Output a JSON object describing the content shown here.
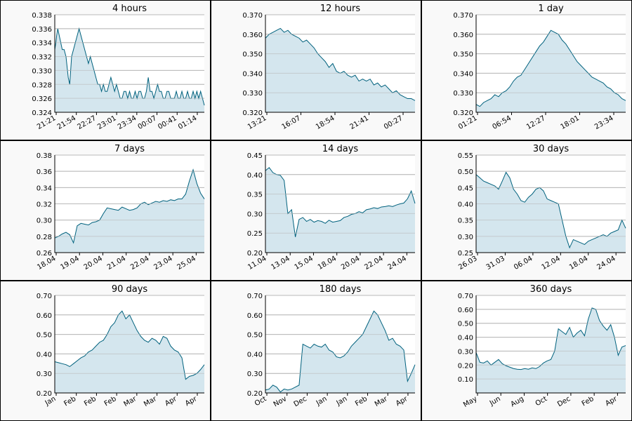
{
  "chart_data": [
    {
      "type": "area",
      "title": "4 hours",
      "xlabel": "",
      "ylabel": "",
      "ylim": [
        0.324,
        0.338
      ],
      "yticks": [
        "0.338",
        "0.336",
        "0.334",
        "0.332",
        "0.330",
        "0.328",
        "0.326",
        "0.324"
      ],
      "xticks": [
        "21:21",
        "21:54",
        "22:27",
        "23:01",
        "23:34",
        "00:07",
        "00:41",
        "01:14"
      ],
      "x": [
        0,
        0.3,
        0.5,
        0.8,
        1.2,
        1.6,
        2,
        2.5,
        3,
        3.2,
        3.6,
        4,
        4.5,
        5,
        5.5,
        6,
        6.5,
        7,
        7.5,
        8,
        8.5,
        9,
        9.5,
        10,
        10.5,
        11,
        11.5,
        12,
        12.5,
        13,
        13.5,
        14,
        14.5,
        15,
        15.5,
        16,
        16.5,
        17,
        17.5,
        18,
        18.5,
        19,
        19.5,
        20,
        20.5,
        21,
        21.5,
        22,
        22.5,
        23,
        23.5,
        24,
        24.5,
        25,
        25.5,
        26,
        26.5,
        27,
        27.5,
        28,
        28.5,
        29,
        29.5,
        30,
        30.5,
        31,
        31.5,
        32,
        32.5,
        33,
        33.5,
        34,
        34.5,
        35,
        35.5,
        36,
        36.5,
        37,
        37.5,
        38,
        38.5,
        39,
        39.5,
        40
      ],
      "values": [
        0.333,
        0.334,
        0.335,
        0.336,
        0.335,
        0.334,
        0.333,
        0.333,
        0.332,
        0.331,
        0.329,
        0.328,
        0.332,
        0.333,
        0.334,
        0.335,
        0.336,
        0.335,
        0.334,
        0.333,
        0.332,
        0.331,
        0.332,
        0.331,
        0.33,
        0.329,
        0.328,
        0.328,
        0.327,
        0.328,
        0.327,
        0.327,
        0.328,
        0.329,
        0.328,
        0.327,
        0.328,
        0.327,
        0.326,
        0.326,
        0.327,
        0.327,
        0.326,
        0.327,
        0.326,
        0.326,
        0.327,
        0.326,
        0.327,
        0.327,
        0.326,
        0.326,
        0.327,
        0.329,
        0.327,
        0.327,
        0.326,
        0.327,
        0.328,
        0.327,
        0.327,
        0.326,
        0.326,
        0.327,
        0.327,
        0.326,
        0.326,
        0.326,
        0.327,
        0.326,
        0.326,
        0.327,
        0.326,
        0.326,
        0.327,
        0.326,
        0.326,
        0.327,
        0.326,
        0.327,
        0.326,
        0.327,
        0.326,
        0.325
      ]
    },
    {
      "type": "area",
      "title": "12 hours",
      "xlabel": "",
      "ylabel": "",
      "ylim": [
        0.32,
        0.37
      ],
      "yticks": [
        "0.370",
        "0.360",
        "0.350",
        "0.340",
        "0.330",
        "0.320"
      ],
      "xticks": [
        "13:21",
        "16:07",
        "18:54",
        "21:41",
        "00:27"
      ],
      "x": [
        0,
        1,
        2,
        3,
        4,
        5,
        6,
        7,
        8,
        9,
        10,
        11,
        12,
        13,
        14,
        15,
        16,
        17,
        18,
        19,
        20,
        21,
        22,
        23,
        24,
        25,
        26,
        27,
        28,
        29,
        30,
        31,
        32,
        33,
        34,
        35,
        36,
        37,
        38,
        39,
        40
      ],
      "values": [
        0.358,
        0.36,
        0.361,
        0.362,
        0.363,
        0.361,
        0.362,
        0.36,
        0.359,
        0.358,
        0.356,
        0.357,
        0.355,
        0.353,
        0.35,
        0.348,
        0.346,
        0.343,
        0.345,
        0.341,
        0.34,
        0.341,
        0.339,
        0.338,
        0.339,
        0.336,
        0.337,
        0.336,
        0.337,
        0.334,
        0.335,
        0.333,
        0.334,
        0.332,
        0.33,
        0.331,
        0.329,
        0.328,
        0.327,
        0.327,
        0.326
      ]
    },
    {
      "type": "area",
      "title": "1 day",
      "xlabel": "",
      "ylabel": "",
      "ylim": [
        0.32,
        0.37
      ],
      "yticks": [
        "0.370",
        "0.360",
        "0.350",
        "0.340",
        "0.330",
        "0.320"
      ],
      "xticks": [
        "01:21",
        "06:54",
        "12:27",
        "18:01",
        "23:34"
      ],
      "x": [
        0,
        1,
        2,
        3,
        4,
        5,
        6,
        7,
        8,
        9,
        10,
        11,
        12,
        13,
        14,
        15,
        16,
        17,
        18,
        19,
        20,
        21,
        22,
        23,
        24,
        25,
        26,
        27,
        28,
        29,
        30,
        31,
        32,
        33,
        34,
        35,
        36,
        37,
        38,
        39,
        40
      ],
      "values": [
        0.324,
        0.323,
        0.325,
        0.326,
        0.327,
        0.329,
        0.328,
        0.33,
        0.331,
        0.333,
        0.336,
        0.338,
        0.339,
        0.342,
        0.345,
        0.348,
        0.351,
        0.354,
        0.356,
        0.359,
        0.362,
        0.361,
        0.36,
        0.357,
        0.355,
        0.352,
        0.349,
        0.346,
        0.344,
        0.342,
        0.34,
        0.338,
        0.337,
        0.336,
        0.335,
        0.333,
        0.332,
        0.33,
        0.329,
        0.327,
        0.326
      ]
    },
    {
      "type": "area",
      "title": "7 days",
      "xlabel": "",
      "ylabel": "",
      "ylim": [
        0.26,
        0.38
      ],
      "yticks": [
        "0.38",
        "0.36",
        "0.34",
        "0.32",
        "0.30",
        "0.28",
        "0.26"
      ],
      "xticks": [
        "18.04",
        "19.04",
        "20.04",
        "21.04",
        "22.04",
        "23.04",
        "25.04"
      ],
      "x": [
        0,
        1,
        2,
        3,
        4,
        5,
        6,
        7,
        8,
        9,
        10,
        11,
        12,
        13,
        14,
        15,
        16,
        17,
        18,
        19,
        20,
        21,
        22,
        23,
        24,
        25,
        26,
        27,
        28,
        29,
        30,
        31,
        32,
        33,
        34,
        35,
        36,
        37,
        38,
        39,
        40
      ],
      "values": [
        0.278,
        0.28,
        0.283,
        0.285,
        0.282,
        0.272,
        0.293,
        0.296,
        0.295,
        0.294,
        0.297,
        0.298,
        0.3,
        0.308,
        0.315,
        0.314,
        0.313,
        0.312,
        0.316,
        0.314,
        0.312,
        0.313,
        0.315,
        0.32,
        0.322,
        0.319,
        0.321,
        0.323,
        0.322,
        0.324,
        0.323,
        0.325,
        0.324,
        0.326,
        0.326,
        0.332,
        0.348,
        0.362,
        0.345,
        0.333,
        0.326
      ]
    },
    {
      "type": "area",
      "title": "14 days",
      "xlabel": "",
      "ylabel": "",
      "ylim": [
        0.2,
        0.45
      ],
      "yticks": [
        "0.45",
        "0.40",
        "0.35",
        "0.30",
        "0.25",
        "0.20"
      ],
      "xticks": [
        "11.04",
        "13.04",
        "15.04",
        "18.04",
        "20.04",
        "22.04",
        "24.04"
      ],
      "x": [
        0,
        1,
        2,
        3,
        4,
        5,
        6,
        7,
        8,
        9,
        10,
        11,
        12,
        13,
        14,
        15,
        16,
        17,
        18,
        19,
        20,
        21,
        22,
        23,
        24,
        25,
        26,
        27,
        28,
        29,
        30,
        31,
        32,
        33,
        34,
        35,
        36,
        37,
        38,
        39,
        40
      ],
      "values": [
        0.41,
        0.418,
        0.405,
        0.4,
        0.398,
        0.385,
        0.3,
        0.31,
        0.24,
        0.285,
        0.29,
        0.28,
        0.285,
        0.278,
        0.282,
        0.28,
        0.275,
        0.283,
        0.278,
        0.28,
        0.282,
        0.29,
        0.293,
        0.298,
        0.3,
        0.305,
        0.302,
        0.31,
        0.312,
        0.315,
        0.313,
        0.317,
        0.318,
        0.32,
        0.318,
        0.322,
        0.325,
        0.327,
        0.338,
        0.358,
        0.326
      ]
    },
    {
      "type": "area",
      "title": "30 days",
      "xlabel": "",
      "ylabel": "",
      "ylim": [
        0.25,
        0.55
      ],
      "yticks": [
        "0.55",
        "0.50",
        "0.45",
        "0.40",
        "0.35",
        "0.30",
        "0.25"
      ],
      "xticks": [
        "26.03",
        "31.03",
        "06.04",
        "12.04",
        "18.04",
        "24.04"
      ],
      "x": [
        0,
        1,
        2,
        3,
        4,
        5,
        6,
        7,
        8,
        9,
        10,
        11,
        12,
        13,
        14,
        15,
        16,
        17,
        18,
        19,
        20,
        21,
        22,
        23,
        24,
        25,
        26,
        27,
        28,
        29,
        30,
        31,
        32,
        33,
        34,
        35,
        36,
        37,
        38,
        39,
        40
      ],
      "values": [
        0.49,
        0.48,
        0.47,
        0.465,
        0.46,
        0.455,
        0.445,
        0.47,
        0.497,
        0.48,
        0.445,
        0.43,
        0.41,
        0.405,
        0.42,
        0.43,
        0.445,
        0.45,
        0.44,
        0.415,
        0.41,
        0.405,
        0.4,
        0.35,
        0.3,
        0.265,
        0.29,
        0.285,
        0.28,
        0.275,
        0.285,
        0.29,
        0.295,
        0.3,
        0.305,
        0.3,
        0.31,
        0.315,
        0.32,
        0.35,
        0.325
      ]
    },
    {
      "type": "area",
      "title": "90 days",
      "xlabel": "",
      "ylabel": "",
      "ylim": [
        0.2,
        0.7
      ],
      "yticks": [
        "0.70",
        "0.60",
        "0.50",
        "0.40",
        "0.30",
        "0.20"
      ],
      "xticks": [
        "Jan",
        "Feb",
        "Feb",
        "Feb",
        "Mar",
        "Mar",
        "Apr",
        "Apr"
      ],
      "x": [
        0,
        1,
        2,
        3,
        4,
        5,
        6,
        7,
        8,
        9,
        10,
        11,
        12,
        13,
        14,
        15,
        16,
        17,
        18,
        19,
        20,
        21,
        22,
        23,
        24,
        25,
        26,
        27,
        28,
        29,
        30,
        31,
        32,
        33,
        34,
        35,
        36,
        37,
        38,
        39,
        40
      ],
      "values": [
        0.36,
        0.355,
        0.35,
        0.345,
        0.335,
        0.35,
        0.365,
        0.38,
        0.39,
        0.41,
        0.42,
        0.44,
        0.46,
        0.47,
        0.5,
        0.54,
        0.56,
        0.6,
        0.62,
        0.58,
        0.6,
        0.56,
        0.52,
        0.49,
        0.47,
        0.46,
        0.48,
        0.47,
        0.45,
        0.49,
        0.48,
        0.44,
        0.42,
        0.41,
        0.38,
        0.27,
        0.285,
        0.29,
        0.3,
        0.32,
        0.345
      ]
    },
    {
      "type": "area",
      "title": "180 days",
      "xlabel": "",
      "ylabel": "",
      "ylim": [
        0.2,
        0.7
      ],
      "yticks": [
        "0.70",
        "0.60",
        "0.50",
        "0.40",
        "0.30",
        "0.20"
      ],
      "xticks": [
        "Oct",
        "Nov",
        "Dec",
        "Jan",
        "Jan",
        "Feb",
        "Mar",
        "Apr"
      ],
      "x": [
        0,
        1,
        2,
        3,
        4,
        5,
        6,
        7,
        8,
        9,
        10,
        11,
        12,
        13,
        14,
        15,
        16,
        17,
        18,
        19,
        20,
        21,
        22,
        23,
        24,
        25,
        26,
        27,
        28,
        29,
        30,
        31,
        32,
        33,
        34,
        35,
        36,
        37,
        38,
        39,
        40
      ],
      "values": [
        0.215,
        0.22,
        0.24,
        0.23,
        0.205,
        0.22,
        0.215,
        0.22,
        0.23,
        0.24,
        0.45,
        0.44,
        0.43,
        0.45,
        0.44,
        0.435,
        0.45,
        0.42,
        0.41,
        0.385,
        0.38,
        0.39,
        0.41,
        0.44,
        0.46,
        0.48,
        0.5,
        0.54,
        0.58,
        0.62,
        0.6,
        0.56,
        0.52,
        0.47,
        0.48,
        0.45,
        0.44,
        0.42,
        0.26,
        0.3,
        0.345
      ]
    },
    {
      "type": "area",
      "title": "360 days",
      "xlabel": "",
      "ylabel": "",
      "ylim": [
        0.0,
        0.7
      ],
      "yticks": [
        "0.70",
        "0.60",
        "0.50",
        "0.40",
        "0.30",
        "0.20",
        "0.10"
      ],
      "xticks": [
        "May",
        "Jun",
        "Aug",
        "Oct",
        "Dec",
        "Feb",
        "Apr"
      ],
      "x": [
        0,
        1,
        2,
        3,
        4,
        5,
        6,
        7,
        8,
        9,
        10,
        11,
        12,
        13,
        14,
        15,
        16,
        17,
        18,
        19,
        20,
        21,
        22,
        23,
        24,
        25,
        26,
        27,
        28,
        29,
        30,
        31,
        32,
        33,
        34,
        35,
        36,
        37,
        38,
        39,
        40
      ],
      "values": [
        0.29,
        0.22,
        0.215,
        0.23,
        0.2,
        0.22,
        0.24,
        0.21,
        0.195,
        0.185,
        0.175,
        0.17,
        0.168,
        0.175,
        0.17,
        0.18,
        0.175,
        0.19,
        0.215,
        0.23,
        0.24,
        0.3,
        0.46,
        0.44,
        0.42,
        0.47,
        0.4,
        0.43,
        0.45,
        0.41,
        0.53,
        0.61,
        0.6,
        0.52,
        0.48,
        0.45,
        0.49,
        0.4,
        0.27,
        0.33,
        0.34
      ]
    }
  ]
}
